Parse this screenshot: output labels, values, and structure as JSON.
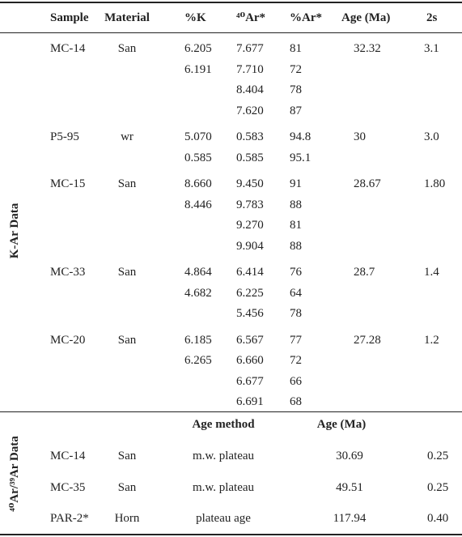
{
  "k_ar": {
    "label": "K-Ar Data",
    "header": [
      "Sample",
      "Material",
      "%K",
      "⁴⁰Ar*",
      "%Ar*",
      "Age (Ma)",
      "2s"
    ],
    "samples": [
      {
        "sample": "MC-14",
        "material": "San",
        "k": [
          "6.205",
          "6.191"
        ],
        "ar40": [
          "7.677",
          "7.710",
          "8.404",
          "7.620"
        ],
        "pct_ar": [
          "81",
          "72",
          "78",
          "87"
        ],
        "age": "32.32",
        "two_s": "3.1"
      },
      {
        "sample": "P5-95",
        "material": "wr",
        "k": [
          "5.070",
          "0.585"
        ],
        "ar40": [
          "0.583",
          "0.585"
        ],
        "pct_ar": [
          "94.8",
          "95.1"
        ],
        "age": "30",
        "two_s": "3.0"
      },
      {
        "sample": "MC-15",
        "material": "San",
        "k": [
          "8.660",
          "8.446"
        ],
        "ar40": [
          "9.450",
          "9.783",
          "9.270",
          "9.904"
        ],
        "pct_ar": [
          "91",
          "88",
          "81",
          "88"
        ],
        "age": "28.67",
        "two_s": "1.80"
      },
      {
        "sample": "MC-33",
        "material": "San",
        "k": [
          "4.864",
          "4.682"
        ],
        "ar40": [
          "6.414",
          "6.225",
          "5.456"
        ],
        "pct_ar": [
          "76",
          "64",
          "78"
        ],
        "age": "28.7",
        "two_s": "1.4"
      },
      {
        "sample": "MC-20",
        "material": "San",
        "k": [
          "6.185",
          "6.265"
        ],
        "ar40": [
          "6.567",
          "6.660",
          "6.677",
          "6.691"
        ],
        "pct_ar": [
          "77",
          "72",
          "66",
          "68"
        ],
        "age": "27.28",
        "two_s": "1.2"
      }
    ]
  },
  "ar_ar": {
    "label": "⁴⁰Ar/³⁹Ar Data",
    "header": [
      "Age method",
      "Age (Ma)"
    ],
    "rows": [
      [
        "MC-14",
        "San",
        "m.w. plateau",
        "30.69",
        "0.25"
      ],
      [
        "MC-35",
        "San",
        "m.w. plateau",
        "49.51",
        "0.25"
      ],
      [
        "PAR-2*",
        "Horn",
        "plateau age",
        "117.94",
        "0.40"
      ]
    ]
  }
}
